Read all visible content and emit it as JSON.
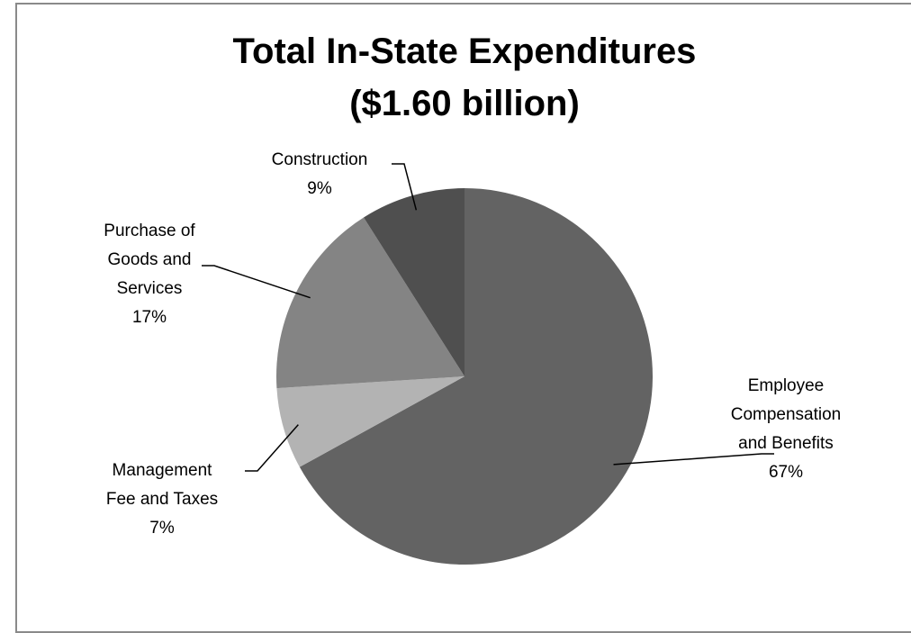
{
  "caption": "",
  "chart_data": {
    "type": "pie",
    "title_lines": [
      "Total In-State Expenditures",
      "($1.60 billion)"
    ],
    "slices": [
      {
        "label": "Employee Compensation and Benefits",
        "label_lines": [
          "Employee",
          "Compensation",
          "and Benefits"
        ],
        "value": 67,
        "value_label": "67%",
        "color": "#636363"
      },
      {
        "label": "Management Fee and Taxes",
        "label_lines": [
          "Management",
          "Fee and Taxes"
        ],
        "value": 7,
        "value_label": "7%",
        "color": "#b3b3b3"
      },
      {
        "label": "Purchase of Goods and Services",
        "label_lines": [
          "Purchase of",
          "Goods and",
          "Services"
        ],
        "value": 17,
        "value_label": "17%",
        "color": "#848484"
      },
      {
        "label": "Construction",
        "label_lines": [
          "Construction"
        ],
        "value": 9,
        "value_label": "9%",
        "color": "#4f4f4f"
      }
    ],
    "start_angle_deg": 0,
    "direction": "clockwise",
    "legend": "none"
  }
}
